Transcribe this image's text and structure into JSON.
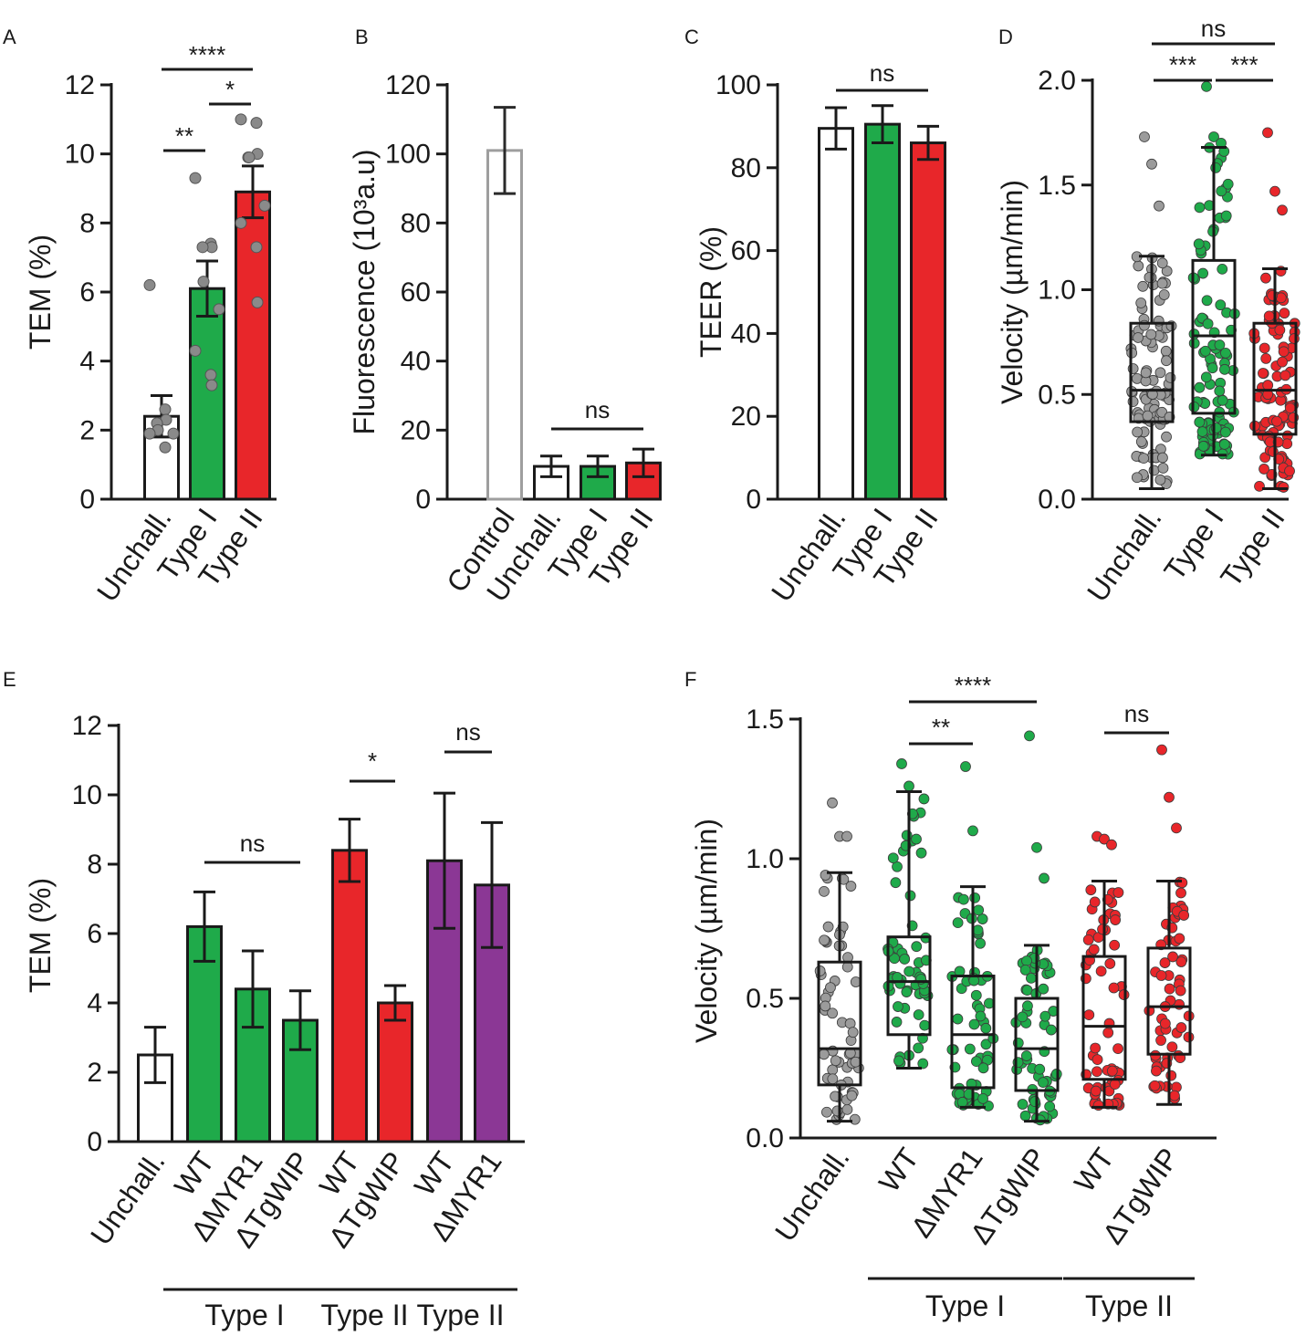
{
  "chart_data": [
    {
      "panel": "A",
      "type": "bar",
      "ylabel": "TEM (%)",
      "ylim": [
        0,
        12
      ],
      "yticks": [
        "0",
        "2",
        "4",
        "6",
        "8",
        "10",
        "12"
      ],
      "categories": [
        "Unchall.",
        "Type I",
        "Type II"
      ],
      "values": [
        2.4,
        6.1,
        8.9
      ],
      "errors": [
        0.6,
        0.8,
        0.75
      ],
      "colors": [
        "#ffffff",
        "#1faa4a",
        "#e8262a"
      ],
      "points": [
        [
          6.2,
          2.6,
          2.3,
          2.2,
          2.0,
          1.9,
          1.9,
          1.5
        ],
        [
          9.3,
          7.4,
          7.3,
          7.3,
          6.3,
          5.5,
          4.3,
          3.6,
          3.3
        ],
        [
          11.0,
          10.9,
          10.0,
          9.9,
          9.9,
          8.5,
          8.0,
          7.3,
          5.7
        ]
      ],
      "significance": [
        {
          "from": 0,
          "to": 1,
          "label": "**"
        },
        {
          "from": 1,
          "to": 2,
          "label": "*"
        },
        {
          "from": 0,
          "to": 2,
          "label": "****"
        }
      ]
    },
    {
      "panel": "B",
      "type": "bar",
      "ylabel": "Fluorescence (10³a.u)",
      "ylim": [
        0,
        120
      ],
      "yticks": [
        "0",
        "20",
        "40",
        "60",
        "80",
        "100",
        "120"
      ],
      "categories": [
        "Control",
        "Unchall.",
        "Type I",
        "Type II"
      ],
      "values": [
        101,
        9.5,
        9.5,
        10.5
      ],
      "errors": [
        12.5,
        3,
        3,
        4
      ],
      "colors": [
        "#ffffff",
        "#ffffff",
        "#1faa4a",
        "#e8262a"
      ],
      "significance": [
        {
          "from": 1,
          "to": 3,
          "label": "ns"
        }
      ]
    },
    {
      "panel": "C",
      "type": "bar",
      "ylabel": "TEER (%)",
      "ylim": [
        0,
        100
      ],
      "yticks": [
        "0",
        "20",
        "40",
        "60",
        "80",
        "100"
      ],
      "categories": [
        "Unchall.",
        "Type I",
        "Type II"
      ],
      "values": [
        89.5,
        90.5,
        86
      ],
      "errors": [
        5,
        4.5,
        4
      ],
      "colors": [
        "#ffffff",
        "#1faa4a",
        "#e8262a"
      ],
      "significance": [
        {
          "from": 0,
          "to": 2,
          "label": "ns"
        }
      ]
    },
    {
      "panel": "D",
      "type": "box-scatter",
      "ylabel": "Velocity (µm/min)",
      "ylim": [
        0,
        2.0
      ],
      "yticks": [
        "0.0",
        "0.5",
        "1.0",
        "1.5",
        "2.0"
      ],
      "categories": [
        "Unchall.",
        "Type I",
        "Type II"
      ],
      "boxes": [
        {
          "min": 0.05,
          "q1": 0.37,
          "median": 0.52,
          "q3": 0.84,
          "max": 1.16
        },
        {
          "min": 0.21,
          "q1": 0.41,
          "median": 0.78,
          "q3": 1.14,
          "max": 1.68
        },
        {
          "min": 0.05,
          "q1": 0.31,
          "median": 0.52,
          "q3": 0.84,
          "max": 1.1
        }
      ],
      "point_colors": [
        "#9b9b9b",
        "#1faa4a",
        "#e8262a"
      ],
      "n_points": [
        100,
        100,
        100
      ],
      "outliers": [
        [
          1.73,
          1.6,
          1.4
        ],
        [
          1.97,
          1.73,
          1.7
        ],
        [
          1.75,
          1.47,
          1.38
        ]
      ],
      "significance": [
        {
          "from": 0,
          "to": 1,
          "label": "***"
        },
        {
          "from": 1,
          "to": 2,
          "label": "***"
        },
        {
          "from": 0,
          "to": 2,
          "label": "ns"
        }
      ]
    },
    {
      "panel": "E",
      "type": "bar",
      "ylabel": "TEM (%)",
      "ylim": [
        0,
        12
      ],
      "yticks": [
        "0",
        "2",
        "4",
        "6",
        "8",
        "10",
        "12"
      ],
      "categories": [
        "Unchall.",
        "WT",
        "ΔMYR1",
        "ΔTgWIP",
        "WT",
        "ΔTgWIP",
        "WT",
        "ΔMYR1"
      ],
      "values": [
        2.5,
        6.2,
        4.4,
        3.5,
        8.4,
        4.0,
        8.1,
        7.4
      ],
      "errors": [
        0.8,
        1.0,
        1.1,
        0.85,
        0.9,
        0.5,
        1.95,
        1.8
      ],
      "colors": [
        "#ffffff",
        "#1faa4a",
        "#1faa4a",
        "#1faa4a",
        "#e8262a",
        "#e8262a",
        "#8b3795",
        "#8b3795"
      ],
      "significance": [
        {
          "from": 1,
          "to": 3,
          "label": "ns"
        },
        {
          "from": 4,
          "to": 5,
          "label": "*"
        },
        {
          "from": 6,
          "to": 7,
          "label": "ns"
        }
      ],
      "groups": [
        {
          "from": 1,
          "to": 3,
          "label": "Type I"
        },
        {
          "from": 4,
          "to": 5,
          "label": "Type II"
        },
        {
          "from": 6,
          "to": 7,
          "label": "Type II"
        }
      ]
    },
    {
      "panel": "F",
      "type": "box-scatter",
      "ylabel": "Velocity (µm/min)",
      "ylim": [
        0,
        1.5
      ],
      "yticks": [
        "0.0",
        "0.5",
        "1.0",
        "1.5"
      ],
      "categories": [
        "Unchall.",
        "WT",
        "ΔMYR1",
        "ΔTgWIP",
        "WT",
        "ΔTgWIP"
      ],
      "boxes": [
        {
          "min": 0.06,
          "q1": 0.19,
          "median": 0.32,
          "q3": 0.63,
          "max": 0.95
        },
        {
          "min": 0.25,
          "q1": 0.37,
          "median": 0.56,
          "q3": 0.72,
          "max": 1.24
        },
        {
          "min": 0.11,
          "q1": 0.18,
          "median": 0.37,
          "q3": 0.58,
          "max": 0.9
        },
        {
          "min": 0.06,
          "q1": 0.17,
          "median": 0.32,
          "q3": 0.5,
          "max": 0.69
        },
        {
          "min": 0.11,
          "q1": 0.21,
          "median": 0.4,
          "q3": 0.65,
          "max": 0.92
        },
        {
          "min": 0.12,
          "q1": 0.3,
          "median": 0.47,
          "q3": 0.68,
          "max": 0.92
        }
      ],
      "point_colors": [
        "#9b9b9b",
        "#1faa4a",
        "#1faa4a",
        "#1faa4a",
        "#e8262a",
        "#e8262a"
      ],
      "n_points": [
        60,
        60,
        60,
        60,
        60,
        60
      ],
      "outliers": [
        [
          1.2,
          1.08,
          1.08
        ],
        [
          1.34,
          1.26,
          1.07
        ],
        [
          1.33,
          1.1
        ],
        [
          1.44,
          1.04,
          0.93
        ],
        [
          1.08,
          1.07,
          1.05
        ],
        [
          1.39,
          1.22,
          1.11
        ]
      ],
      "significance": [
        {
          "from": 1,
          "to": 2,
          "label": "**"
        },
        {
          "from": 1,
          "to": 3,
          "label": "****"
        },
        {
          "from": 4,
          "to": 5,
          "label": "ns"
        }
      ],
      "groups": [
        {
          "from": 1,
          "to": 3,
          "label": "Type I"
        },
        {
          "from": 4,
          "to": 5,
          "label": "Type II"
        }
      ]
    }
  ]
}
